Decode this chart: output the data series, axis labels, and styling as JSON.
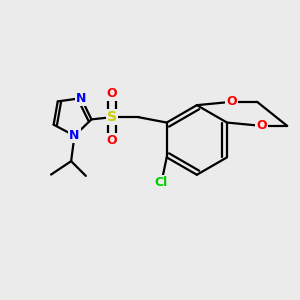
{
  "background_color": "#EBEBEB",
  "atom_colors": {
    "N": "#0000FF",
    "O": "#FF0000",
    "S": "#CCCC00",
    "Cl": "#00CC00",
    "C": "#000000"
  },
  "bond_color": "#000000",
  "bond_width": 1.6,
  "dbo": 0.055,
  "figsize": [
    3.0,
    3.0
  ],
  "dpi": 100
}
